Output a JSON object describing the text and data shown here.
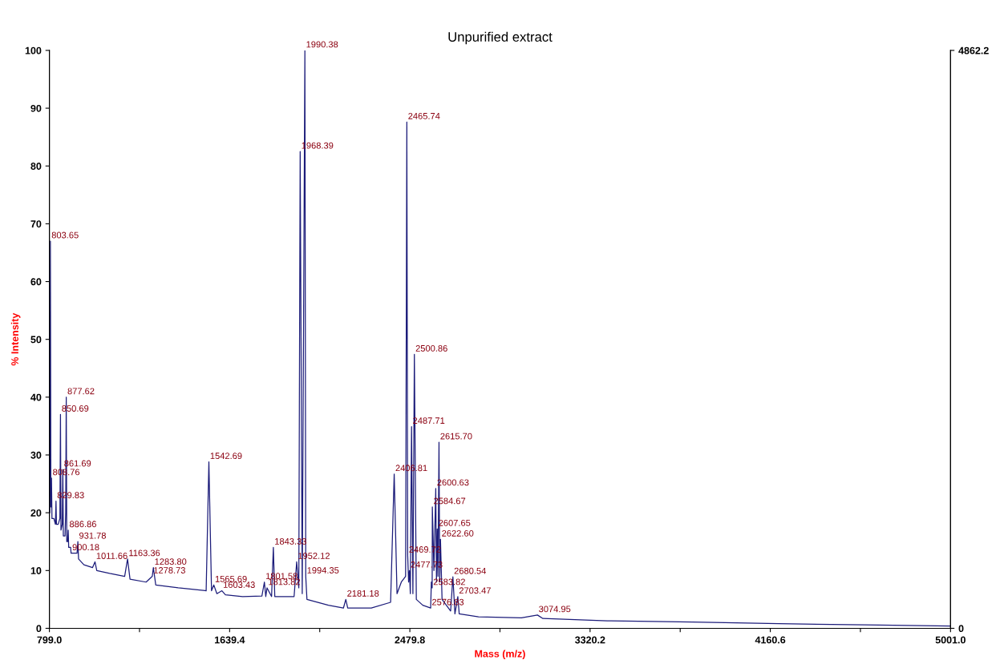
{
  "chart_data": {
    "type": "line",
    "title": "Unpurified extract",
    "xlabel": "Mass (m/z)",
    "ylabel": "% Intensity",
    "xlim": [
      799.0,
      5001.0
    ],
    "xticks": [
      {
        "value": 799.0,
        "label": "799.0"
      },
      {
        "value": 1219.2,
        "label": null
      },
      {
        "value": 1639.4,
        "label": "1639.4"
      },
      {
        "value": 2059.6,
        "label": null
      },
      {
        "value": 2479.8,
        "label": "2479.8"
      },
      {
        "value": 2900.0,
        "label": null
      },
      {
        "value": 3320.2,
        "label": "3320.2"
      },
      {
        "value": 3740.4,
        "label": null
      },
      {
        "value": 4160.6,
        "label": "4160.6"
      },
      {
        "value": 4580.8,
        "label": null
      },
      {
        "value": 5001.0,
        "label": "5001.0"
      }
    ],
    "ylim": [
      0,
      100
    ],
    "yticks": [
      0,
      10,
      20,
      30,
      40,
      50,
      60,
      70,
      80,
      90,
      100
    ],
    "y2lim": [
      0,
      4862.2
    ],
    "y2ticks": [
      0,
      4862.2
    ],
    "grid": false,
    "legend": false,
    "marker": "none",
    "line_style": "solid",
    "series": [
      {
        "color": "#1c1c7a",
        "x": [
          799,
          801,
          803.65,
          806,
          808.76,
          811,
          820,
          827,
          829.83,
          832,
          840,
          848,
          850.69,
          853,
          859,
          861.69,
          864,
          872,
          875,
          877.62,
          880,
          884,
          886.86,
          889,
          898,
          900.18,
          903,
          928,
          931.78,
          935,
          960,
          1000,
          1011.66,
          1020,
          1080,
          1150,
          1163.36,
          1175,
          1250,
          1278.73,
          1283.8,
          1295,
          1400,
          1530,
          1542.69,
          1555,
          1565.69,
          1580,
          1603.43,
          1620,
          1700,
          1790,
          1801.58,
          1808,
          1813.82,
          1835,
          1843.33,
          1850,
          1940,
          1952.12,
          1962,
          1968.39,
          1978,
          1990.38,
          1994.35,
          2000,
          2100,
          2170,
          2181.18,
          2190,
          2300,
          2390,
          2406.81,
          2420,
          2440,
          2460,
          2465.74,
          2469.72,
          2474,
          2477.73,
          2482,
          2487.71,
          2494,
          2500.86,
          2510,
          2540,
          2576.83,
          2580,
          2583.82,
          2584.67,
          2592,
          2600.63,
          2604,
          2607.65,
          2611,
          2615.7,
          2619,
          2622.6,
          2630,
          2670,
          2680.54,
          2690,
          2703.47,
          2710,
          2800,
          3000,
          3074.95,
          3100,
          3400,
          3800,
          4200,
          4600,
          5001
        ],
        "values": [
          22,
          20,
          67,
          21,
          26,
          19,
          19,
          18,
          22,
          18,
          18,
          19,
          37,
          17,
          18,
          27.5,
          16,
          16,
          20,
          40,
          15,
          15,
          17,
          14,
          14,
          13,
          13,
          13,
          15,
          12,
          11,
          10.5,
          11.5,
          10,
          9.5,
          9,
          12,
          8.5,
          8,
          9,
          10.5,
          7.5,
          7,
          6.5,
          28.8,
          6.5,
          7.5,
          6,
          6.5,
          5.8,
          5.5,
          5.6,
          8,
          5.5,
          7,
          5.5,
          14,
          5.5,
          5.5,
          11.5,
          7,
          82.5,
          6,
          100,
          9,
          5,
          4,
          3.5,
          5,
          3.5,
          3.5,
          4.5,
          26.7,
          6,
          8,
          9,
          87.6,
          12.6,
          8,
          10,
          6,
          34.9,
          6,
          47.4,
          5,
          4,
          3.5,
          8,
          7,
          21,
          10,
          24.2,
          8,
          17.2,
          9,
          32.2,
          8,
          15.4,
          5,
          3,
          8.9,
          2.5,
          5.5,
          2.5,
          2,
          1.8,
          2.3,
          1.7,
          1.3,
          1.1,
          0.8,
          0.6,
          0.4
        ]
      }
    ],
    "annotations": [
      {
        "text": "803.65",
        "x": 803.65,
        "y": 67
      },
      {
        "text": "808.76",
        "x": 808.76,
        "y": 26
      },
      {
        "text": "829.83",
        "x": 829.83,
        "y": 22
      },
      {
        "text": "850.69",
        "x": 850.69,
        "y": 37
      },
      {
        "text": "861.69",
        "x": 861.69,
        "y": 27.5
      },
      {
        "text": "877.62",
        "x": 877.62,
        "y": 40
      },
      {
        "text": "886.86",
        "x": 886.86,
        "y": 17
      },
      {
        "text": "900.18",
        "x": 900.18,
        "y": 13
      },
      {
        "text": "931.78",
        "x": 931.78,
        "y": 15
      },
      {
        "text": "1011.66",
        "x": 1011.66,
        "y": 11.5
      },
      {
        "text": "1163.36",
        "x": 1163.36,
        "y": 12
      },
      {
        "text": "1278.73",
        "x": 1278.73,
        "y": 9
      },
      {
        "text": "1283.80",
        "x": 1283.8,
        "y": 10.5
      },
      {
        "text": "1542.69",
        "x": 1542.69,
        "y": 28.8
      },
      {
        "text": "1565.69",
        "x": 1565.69,
        "y": 7.5
      },
      {
        "text": "1603.43",
        "x": 1603.43,
        "y": 6.5
      },
      {
        "text": "1801.58",
        "x": 1801.58,
        "y": 8
      },
      {
        "text": "1813.82",
        "x": 1813.82,
        "y": 7
      },
      {
        "text": "1843.33",
        "x": 1843.33,
        "y": 14
      },
      {
        "text": "1952.12",
        "x": 1952.12,
        "y": 11.5
      },
      {
        "text": "1968.39",
        "x": 1968.39,
        "y": 82.5
      },
      {
        "text": "1990.38",
        "x": 1990.38,
        "y": 100
      },
      {
        "text": "1994.35",
        "x": 1994.35,
        "y": 9
      },
      {
        "text": "2181.18",
        "x": 2181.18,
        "y": 5
      },
      {
        "text": "2406.81",
        "x": 2406.81,
        "y": 26.7
      },
      {
        "text": "2465.74",
        "x": 2465.74,
        "y": 87.6
      },
      {
        "text": "2469.72",
        "x": 2469.72,
        "y": 12.6
      },
      {
        "text": "2477.73",
        "x": 2477.73,
        "y": 10
      },
      {
        "text": "2487.71",
        "x": 2487.71,
        "y": 34.9
      },
      {
        "text": "2500.86",
        "x": 2500.86,
        "y": 47.4
      },
      {
        "text": "2576.83",
        "x": 2576.83,
        "y": 3.5
      },
      {
        "text": "2583.82",
        "x": 2583.82,
        "y": 7
      },
      {
        "text": "2584.67",
        "x": 2584.67,
        "y": 21
      },
      {
        "text": "2600.63",
        "x": 2600.63,
        "y": 24.2
      },
      {
        "text": "2607.65",
        "x": 2607.65,
        "y": 17.2
      },
      {
        "text": "2615.70",
        "x": 2615.7,
        "y": 32.2
      },
      {
        "text": "2622.60",
        "x": 2622.6,
        "y": 15.4
      },
      {
        "text": "2680.54",
        "x": 2680.54,
        "y": 8.9
      },
      {
        "text": "2703.47",
        "x": 2703.47,
        "y": 5.5
      },
      {
        "text": "3074.95",
        "x": 3074.95,
        "y": 2.3
      }
    ]
  }
}
